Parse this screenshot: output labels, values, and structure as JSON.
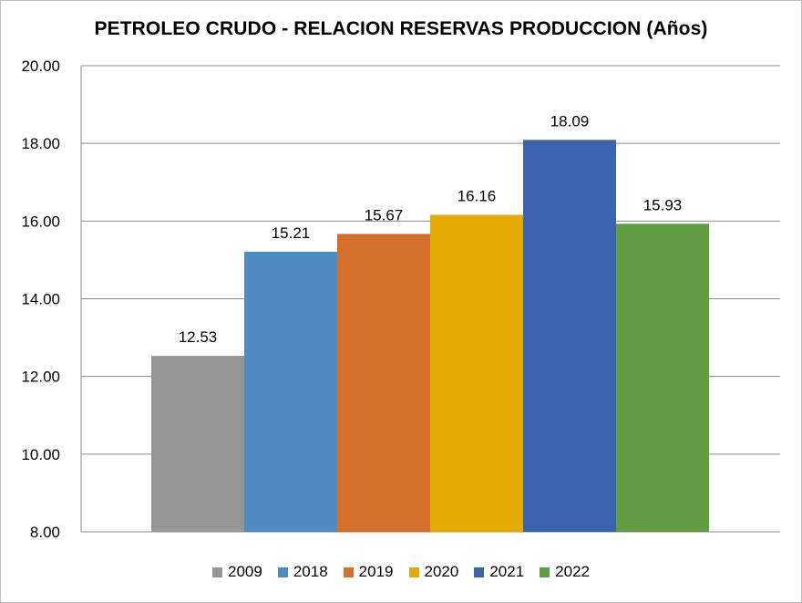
{
  "chart_data": {
    "type": "bar",
    "title": "PETROLEO CRUDO - RELACION RESERVAS PRODUCCION (Años)",
    "xlabel": "",
    "ylabel": "",
    "ylim": [
      8,
      20
    ],
    "yticks": [
      8,
      10,
      12,
      14,
      16,
      18,
      20
    ],
    "ytick_labels": [
      "8.00",
      "10.00",
      "12.00",
      "14.00",
      "16.00",
      "18.00",
      "20.00"
    ],
    "series": [
      {
        "name": "2009",
        "value": 12.53,
        "label": "12.53",
        "color": "#959595"
      },
      {
        "name": "2018",
        "value": 15.21,
        "label": "15.21",
        "color": "#4e8bc0"
      },
      {
        "name": "2019",
        "value": 15.67,
        "label": "15.67",
        "color": "#d46f2c"
      },
      {
        "name": "2020",
        "value": 16.16,
        "label": "16.16",
        "color": "#e2aa02"
      },
      {
        "name": "2021",
        "value": 18.09,
        "label": "18.09",
        "color": "#3b64ad"
      },
      {
        "name": "2022",
        "value": 15.93,
        "label": "15.93",
        "color": "#629c42"
      }
    ],
    "grid": true,
    "legend_position": "bottom"
  }
}
